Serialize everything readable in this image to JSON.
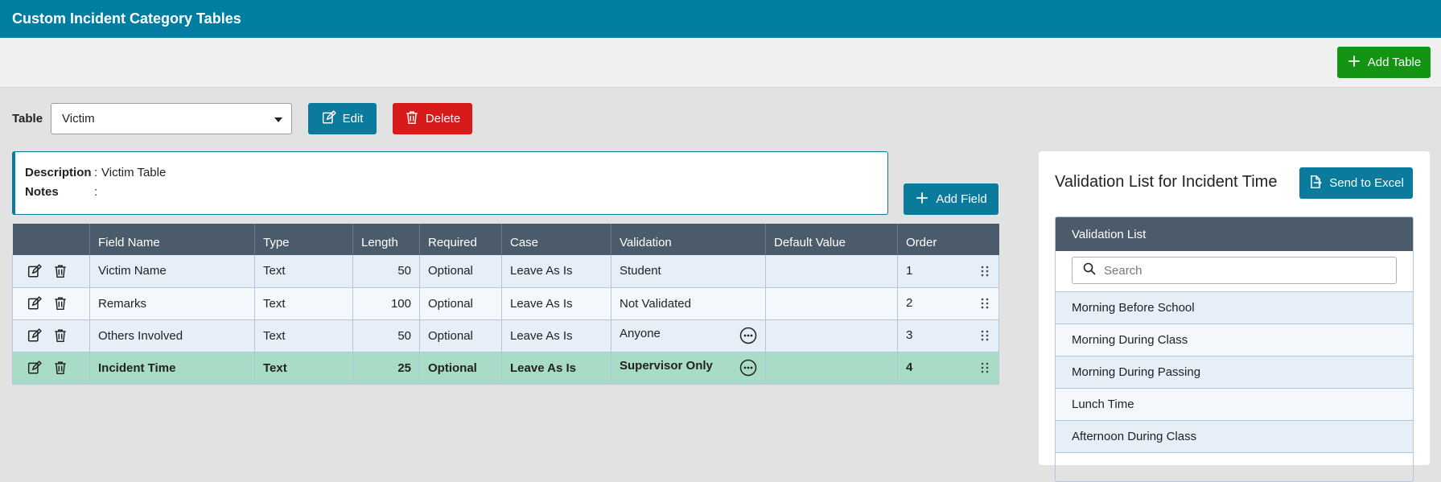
{
  "app": {
    "title": "Custom Incident Category Tables"
  },
  "toolbar": {
    "add_table_label": "Add Table"
  },
  "table_select": {
    "label": "Table",
    "value": "Victim"
  },
  "actions": {
    "edit_label": "Edit",
    "delete_label": "Delete",
    "add_field_label": "Add Field"
  },
  "description": {
    "desc_key": "Description",
    "desc_value": "Victim Table",
    "notes_key": "Notes",
    "notes_value": "",
    "colon": ":"
  },
  "grid": {
    "headers": [
      "Field Name",
      "Type",
      "Length",
      "Required",
      "Case",
      "Validation",
      "Default Value",
      "Order"
    ],
    "rows": [
      {
        "field_name": "Victim Name",
        "type": "Text",
        "length": "50",
        "required": "Optional",
        "case": "Leave As Is",
        "validation": "Student",
        "default_value": "",
        "order": "1",
        "has_more": false
      },
      {
        "field_name": "Remarks",
        "type": "Text",
        "length": "100",
        "required": "Optional",
        "case": "Leave As Is",
        "validation": "Not Validated",
        "default_value": "",
        "order": "2",
        "has_more": false
      },
      {
        "field_name": "Others Involved",
        "type": "Text",
        "length": "50",
        "required": "Optional",
        "case": "Leave As Is",
        "validation": "Anyone",
        "default_value": "",
        "order": "3",
        "has_more": true
      },
      {
        "field_name": "Incident Time",
        "type": "Text",
        "length": "25",
        "required": "Optional",
        "case": "Leave As Is",
        "validation": "Supervisor Only",
        "default_value": "",
        "order": "4",
        "has_more": true
      }
    ],
    "selected_row": 3
  },
  "validation_panel": {
    "title": "Validation List for Incident Time",
    "send_to_excel_label": "Send to Excel",
    "list_header": "Validation List",
    "search_placeholder": "Search",
    "items": [
      "Morning Before School",
      "Morning During Class",
      "Morning During Passing",
      "Lunch Time",
      "Afternoon During Class"
    ]
  },
  "colors": {
    "brand": "#007ea1",
    "green": "#139413",
    "red": "#d71a1a",
    "header": "#4b5b6b",
    "selected_row": "#a8dcc6"
  },
  "icons": [
    "plus-icon",
    "edit-icon",
    "trash-icon",
    "ellipsis-icon",
    "drag-handle-icon",
    "search-icon",
    "export-icon",
    "caret-down-icon"
  ]
}
